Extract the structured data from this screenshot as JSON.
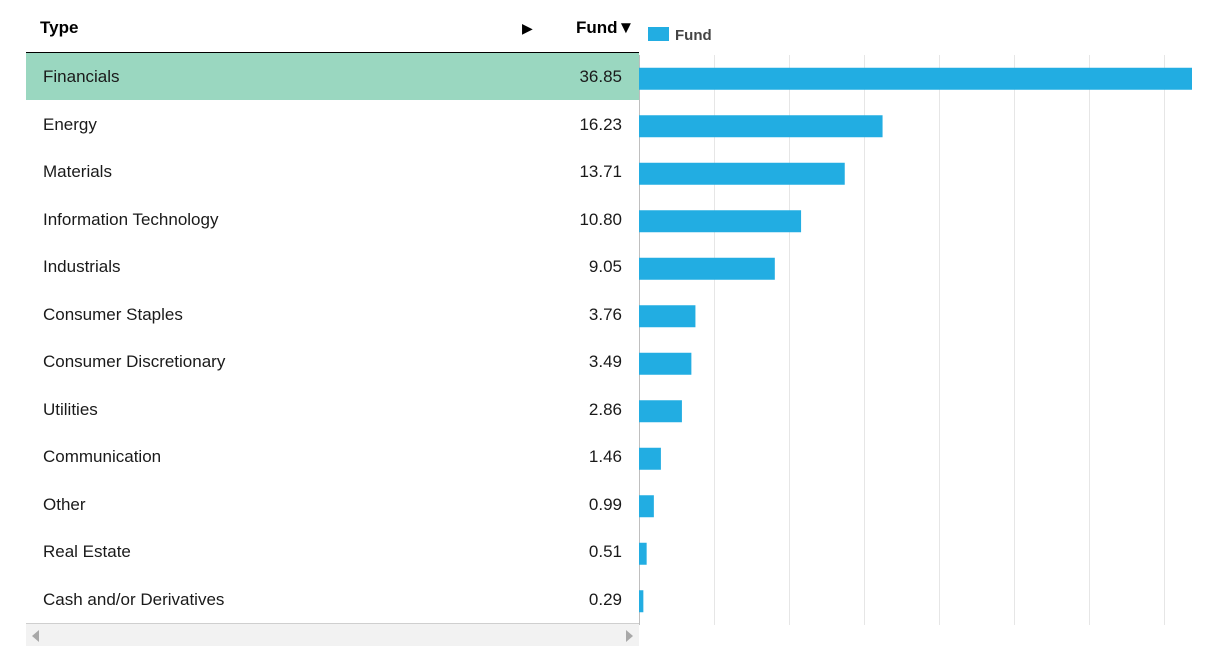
{
  "table": {
    "header_type": "Type",
    "header_fund": "Fund▼",
    "expand_glyph": "▶",
    "selected_index": 0
  },
  "colors": {
    "bar": "#22ade2",
    "selected_row": "#9ad7c0",
    "grid": "#e6e6e6"
  },
  "chart_data": {
    "type": "bar",
    "orientation": "horizontal",
    "legend": [
      "Fund"
    ],
    "legend_position": "top-left",
    "grid": true,
    "xlim": [
      0,
      37
    ],
    "categories": [
      "Financials",
      "Energy",
      "Materials",
      "Information Technology",
      "Industrials",
      "Consumer Staples",
      "Consumer Discretionary",
      "Utilities",
      "Communication",
      "Other",
      "Real Estate",
      "Cash and/or Derivatives"
    ],
    "series": [
      {
        "name": "Fund",
        "values": [
          36.85,
          16.23,
          13.71,
          10.8,
          9.05,
          3.76,
          3.49,
          2.86,
          1.46,
          0.99,
          0.51,
          0.29
        ],
        "labels": [
          "36.85",
          "16.23",
          "13.71",
          "10.80",
          "9.05",
          "3.76",
          "3.49",
          "2.86",
          "1.46",
          "0.99",
          "0.51",
          "0.29"
        ]
      }
    ]
  }
}
